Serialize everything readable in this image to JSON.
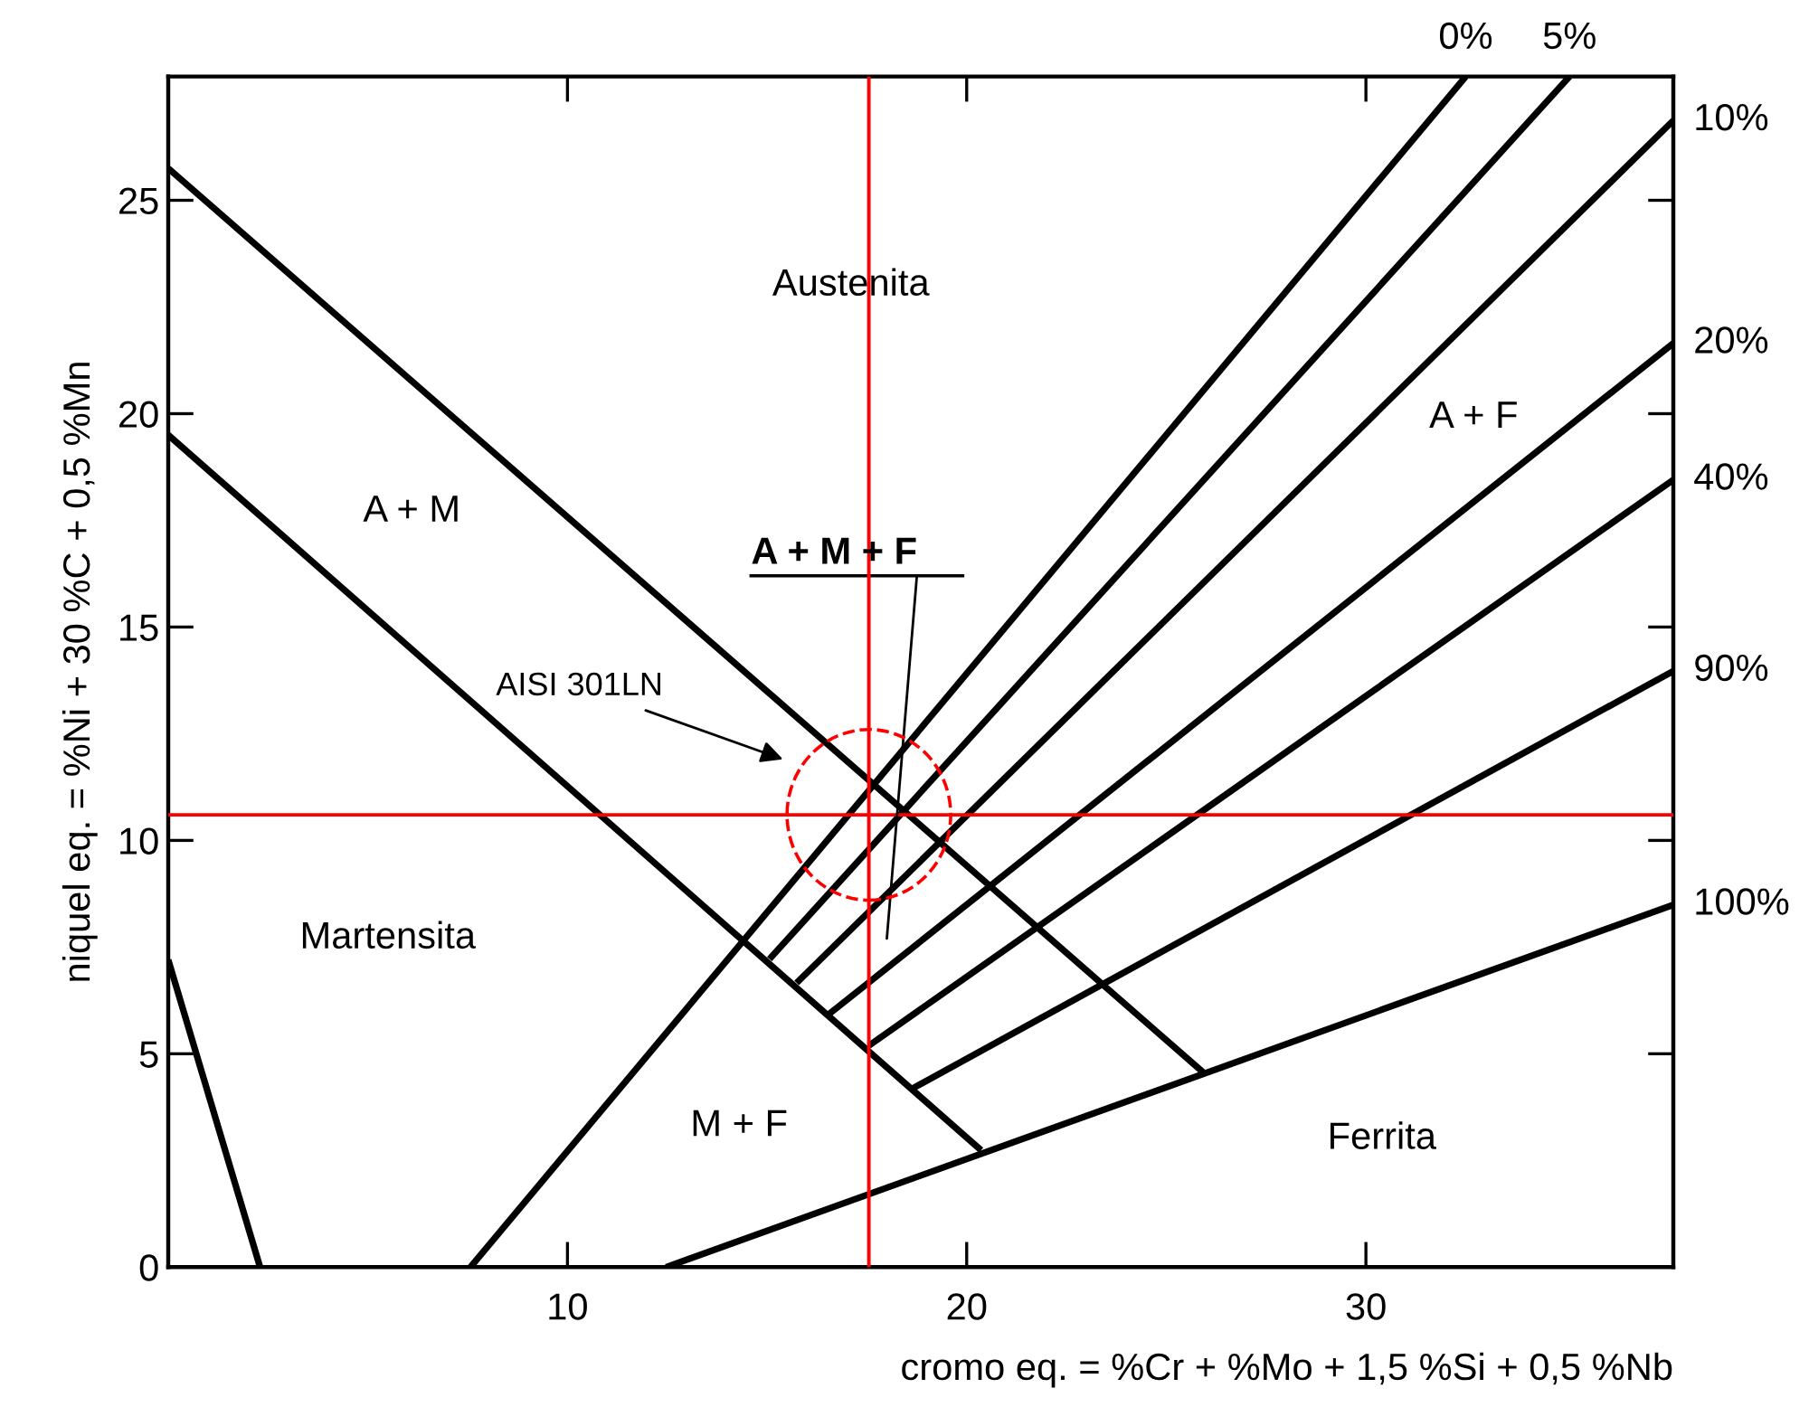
{
  "chart_data": {
    "type": "line",
    "xlabel": "cromo eq. = %Cr + %Mo + 1,5 %Si + 0,5 %Nb",
    "ylabel": "niquel eq. = %Ni + 30 %C + 0,5 %Mn",
    "xlim": [
      0,
      37.7
    ],
    "ylim": [
      0,
      27.9
    ],
    "xticks": [
      {
        "value": 0,
        "label": null
      },
      10,
      20,
      30
    ],
    "yticks": [
      0,
      5,
      10,
      15,
      20,
      25
    ],
    "grid": false,
    "legend": "right",
    "marker": "none",
    "line_style": "solid",
    "series": [
      {
        "color": "#000000",
        "x": [
          0,
          2.3
        ],
        "values": [
          7.2,
          0
        ]
      },
      {
        "color": "#000000",
        "x": [
          0,
          20.36
        ],
        "values": [
          19.5,
          2.74
        ]
      },
      {
        "color": "#000000",
        "x": [
          0,
          25.92
        ],
        "values": [
          25.75,
          4.57
        ]
      },
      {
        "name": "0%",
        "color": "#000000",
        "x": [
          7.57,
          32.5
        ],
        "values": [
          0,
          27.9
        ]
      },
      {
        "name": "5%",
        "color": "#000000",
        "x": [
          15.06,
          35.1
        ],
        "values": [
          7.22,
          27.9
        ]
      },
      {
        "name": "10%",
        "color": "#000000",
        "x": [
          15.74,
          37.7
        ],
        "values": [
          6.66,
          26.87
        ]
      },
      {
        "name": "20%",
        "color": "#000000",
        "x": [
          16.55,
          37.7
        ],
        "values": [
          5.93,
          21.65
        ]
      },
      {
        "name": "40%",
        "color": "#000000",
        "x": [
          17.55,
          37.7
        ],
        "values": [
          5.19,
          18.45
        ]
      },
      {
        "name": "90%",
        "color": "#000000",
        "x": [
          18.63,
          37.7
        ],
        "values": [
          4.18,
          13.97
        ]
      },
      {
        "name": "100%",
        "color": "#000000",
        "x": [
          12.47,
          37.7
        ],
        "values": [
          0,
          8.49
        ]
      }
    ],
    "ref_lines": [
      {
        "axis": "x",
        "value": 17.55,
        "color": "#ff0000"
      },
      {
        "axis": "y",
        "value": 10.6,
        "color": "#ff0000"
      }
    ],
    "annotations": [
      "Austenita",
      "A + M",
      "A + F",
      "Martensita",
      "M + F",
      "Ferrita",
      "A + M + F",
      "AISI 301LN"
    ]
  }
}
